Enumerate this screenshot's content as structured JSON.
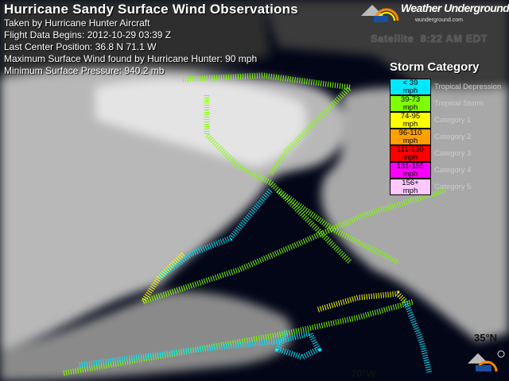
{
  "header": {
    "title": "Hurricane Sandy Surface Wind Observations",
    "lines": [
      "Taken by Hurricane Hunter Aircraft",
      "Flight Data Begins: 2012-10-29 03:39 Z",
      "Last Center Position: 36.8 N 71.1 W",
      "Maximum Surface Wind found by Hurricane Hunter: 90 mph",
      "Minimum Surface Pressure: 940.2 mb"
    ]
  },
  "logo": {
    "name": "Weather Underground",
    "url": "wunderground.com"
  },
  "satellite": {
    "label": "Satellite",
    "time": "8:22 AM EDT"
  },
  "legend": {
    "title": "Storm Category",
    "items": [
      {
        "range": "< 39",
        "unit": "mph",
        "label": "Tropical Depression",
        "color": "#00e8ff"
      },
      {
        "range": "39-73",
        "unit": "mph",
        "label": "Tropical Storm",
        "color": "#80ff00"
      },
      {
        "range": "74-95",
        "unit": "mph",
        "label": "Category 1",
        "color": "#ffff00"
      },
      {
        "range": "96-110",
        "unit": "mph",
        "label": "Category 2",
        "color": "#ffa000"
      },
      {
        "range": "111-130",
        "unit": "mph",
        "label": "Category 3",
        "color": "#ff0000"
      },
      {
        "range": "131-155",
        "unit": "mph",
        "label": "Category 4",
        "color": "#ff00ff"
      },
      {
        "range": "156+",
        "unit": "mph",
        "label": "Category 5",
        "color": "#ffc8ff"
      }
    ]
  },
  "gridlabels": {
    "lat": "35°N",
    "lon": "70°W"
  }
}
